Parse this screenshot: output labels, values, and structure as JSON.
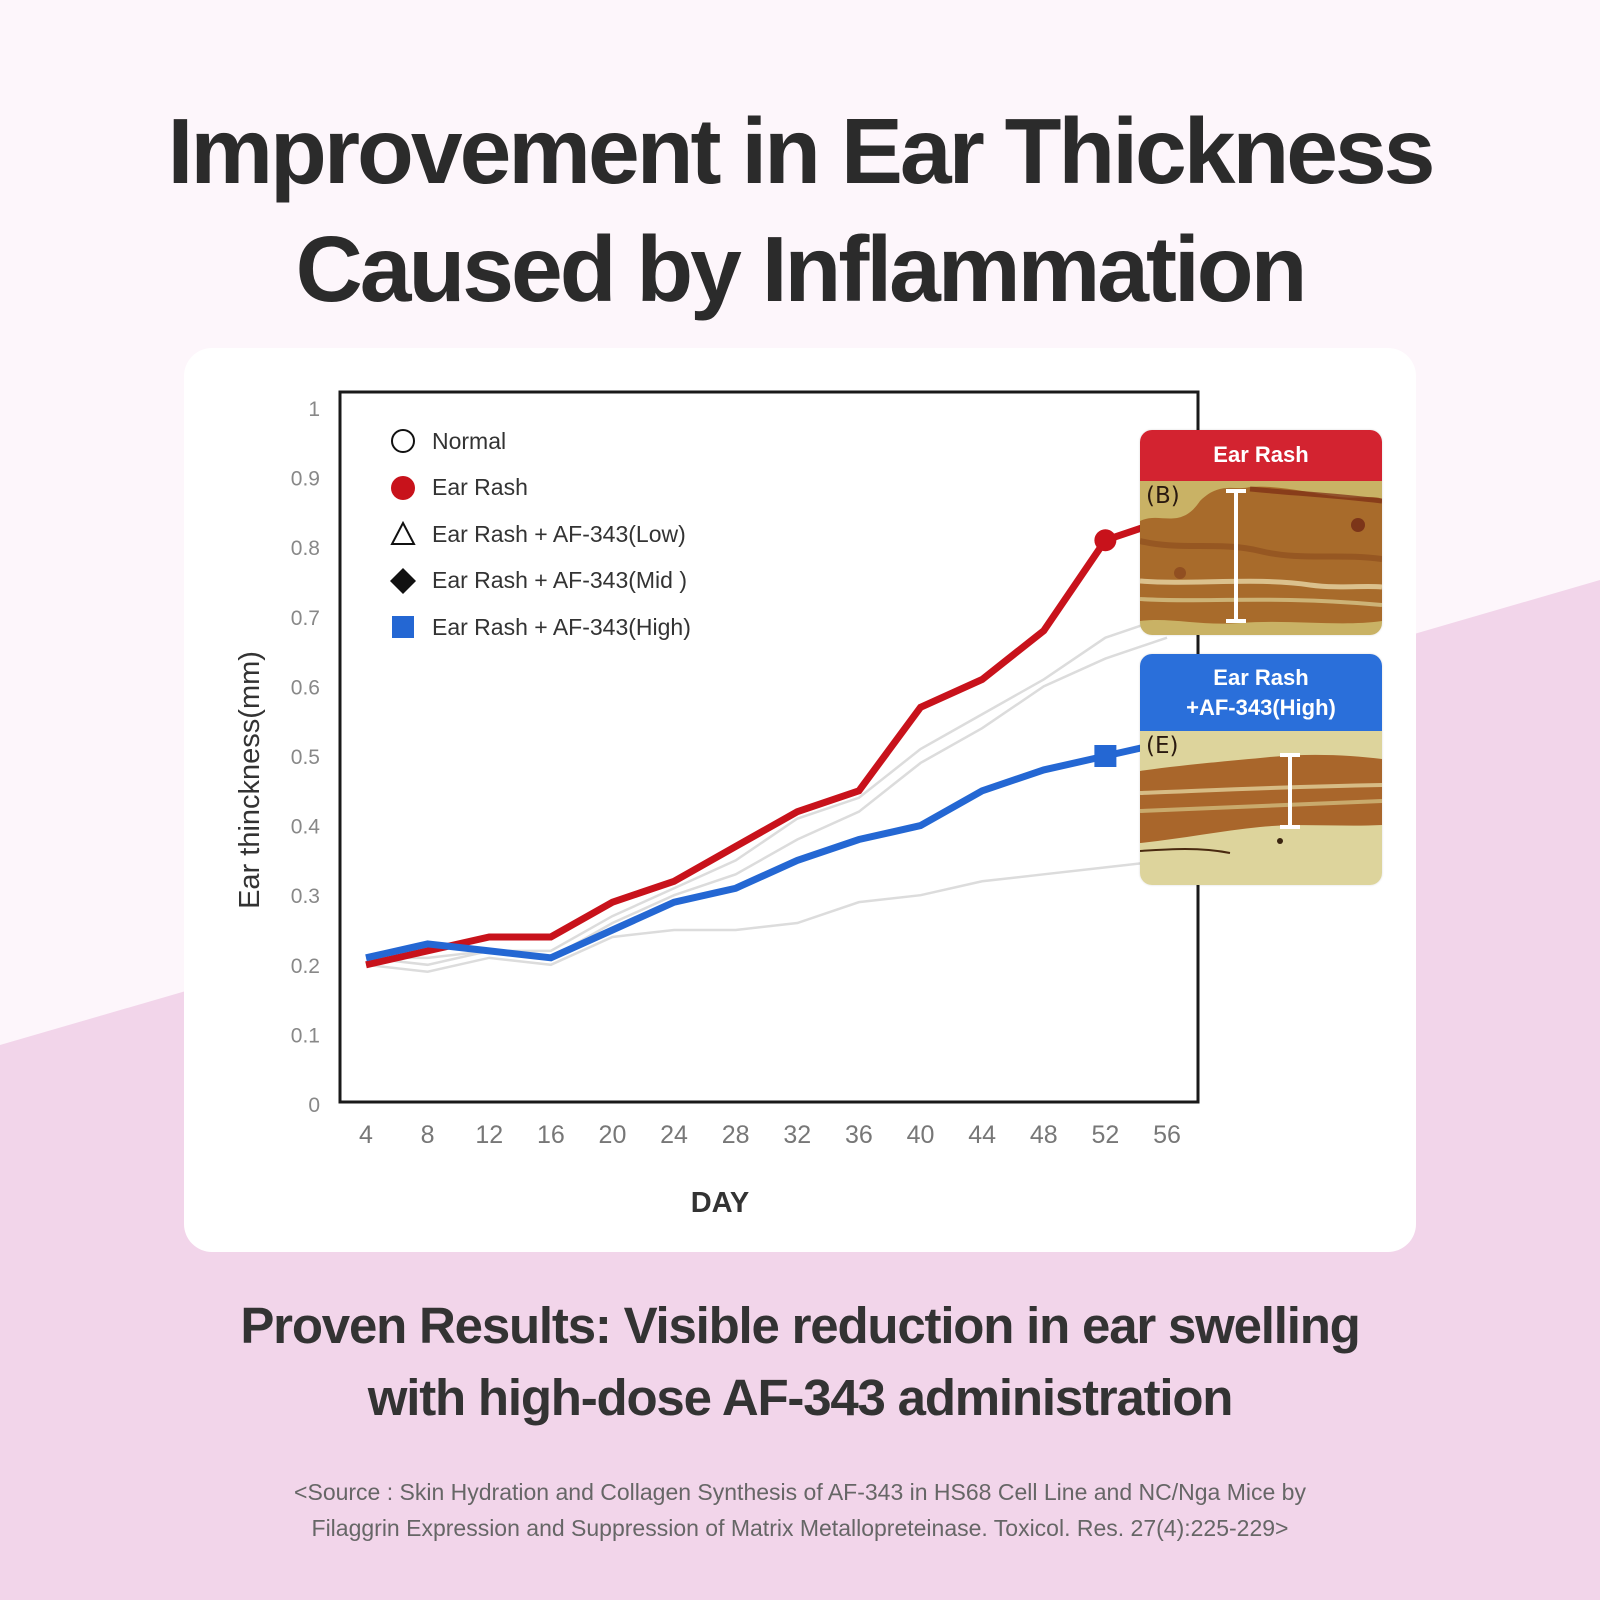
{
  "header": {
    "title_line1": "Improvement in Ear Thickness",
    "title_line2": "Caused by Inflammation"
  },
  "colors": {
    "background_top": "#fdf6fb",
    "background_bottom": "#f2d5ea",
    "ear_rash": "#c8121b",
    "af343_high": "#2467d3",
    "faint_series": "#dcdcdc"
  },
  "chart_data": {
    "type": "line",
    "xlabel": "DAY",
    "ylabel": "Ear thinckness(mm)",
    "x": [
      4,
      8,
      12,
      16,
      20,
      24,
      28,
      32,
      36,
      40,
      44,
      48,
      52,
      56
    ],
    "ylim": [
      0,
      1
    ],
    "yticks": [
      "0",
      "0.1",
      "0.2",
      "0.3",
      "0.4",
      "0.5",
      "0.6",
      "0.7",
      "0.8",
      "0.9",
      "1"
    ],
    "grid": false,
    "legend_position": "top-left",
    "series": [
      {
        "name": "Normal",
        "marker": "circle-open",
        "emphasis": false,
        "values": [
          0.2,
          0.19,
          0.21,
          0.2,
          0.24,
          0.25,
          0.25,
          0.26,
          0.29,
          0.3,
          0.32,
          0.33,
          0.34,
          0.35
        ]
      },
      {
        "name": "Ear Rash",
        "marker": "circle-filled",
        "emphasis": true,
        "values": [
          0.2,
          0.22,
          0.24,
          0.24,
          0.29,
          0.32,
          0.37,
          0.42,
          0.45,
          0.57,
          0.61,
          0.68,
          0.81,
          0.84
        ]
      },
      {
        "name": "Ear Rash + AF-343(Low)",
        "marker": "triangle-open",
        "emphasis": false,
        "values": [
          0.21,
          0.21,
          0.22,
          0.22,
          0.27,
          0.31,
          0.35,
          0.41,
          0.44,
          0.51,
          0.56,
          0.61,
          0.67,
          0.7
        ]
      },
      {
        "name": "Ear Rash + AF-343(Mid )",
        "marker": "diamond-filled",
        "emphasis": false,
        "values": [
          0.21,
          0.2,
          0.22,
          0.21,
          0.26,
          0.3,
          0.33,
          0.38,
          0.42,
          0.49,
          0.54,
          0.6,
          0.64,
          0.67
        ]
      },
      {
        "name": "Ear Rash + AF-343(High)",
        "marker": "square-filled",
        "emphasis": true,
        "values": [
          0.21,
          0.23,
          0.22,
          0.21,
          0.25,
          0.29,
          0.31,
          0.35,
          0.38,
          0.4,
          0.45,
          0.48,
          0.5,
          0.52
        ]
      }
    ],
    "highlighted_points": [
      {
        "series": "Ear Rash",
        "x": 52,
        "y": 0.81
      },
      {
        "series": "Ear Rash + AF-343(High)",
        "x": 52,
        "y": 0.5
      }
    ]
  },
  "panels": [
    {
      "header": "Ear Rash",
      "tag": "(B)",
      "color": "#d32330"
    },
    {
      "header_line1": "Ear Rash",
      "header_line2": "+AF-343(High)",
      "tag": "(E)",
      "color": "#2a6fda"
    }
  ],
  "footer": {
    "subtitle_line1": "Proven Results: Visible reduction in ear swelling",
    "subtitle_line2": "with high-dose AF-343 administration",
    "source_line1": "<Source : Skin Hydration and Collagen Synthesis of AF-343 in HS68 Cell Line and NC/Nga Mice by",
    "source_line2": "Filaggrin Expression and Suppression of Matrix Metallopreteinase. Toxicol. Res. 27(4):225-229>"
  }
}
